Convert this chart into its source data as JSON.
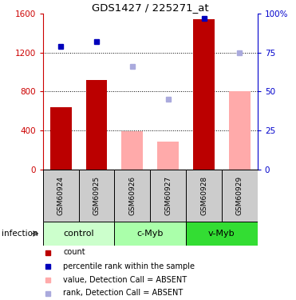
{
  "title": "GDS1427 / 225271_at",
  "samples": [
    "GSM60924",
    "GSM60925",
    "GSM60926",
    "GSM60927",
    "GSM60928",
    "GSM60929"
  ],
  "bar_values": [
    640,
    920,
    null,
    null,
    1540,
    null
  ],
  "bar_color_present": "#bb0000",
  "bar_color_absent": "#ffaaaa",
  "bar_values_absent": [
    null,
    null,
    390,
    290,
    null,
    800
  ],
  "dot_values": [
    1260,
    1310,
    null,
    null,
    1550,
    null
  ],
  "dot_color_present": "#0000bb",
  "dot_values_absent": [
    null,
    null,
    1060,
    720,
    null,
    1200
  ],
  "dot_color_absent": "#aaaadd",
  "ylim_left": [
    0,
    1600
  ],
  "ylim_right": [
    0,
    100
  ],
  "yticks_left": [
    0,
    400,
    800,
    1200,
    1600
  ],
  "yticks_right": [
    0,
    25,
    50,
    75,
    100
  ],
  "ytick_labels_right": [
    "0",
    "25",
    "50",
    "75",
    "100%"
  ],
  "left_axis_color": "#cc0000",
  "right_axis_color": "#0000cc",
  "sample_box_color": "#cccccc",
  "group_defs": [
    {
      "name": "control",
      "start": 0,
      "end": 2,
      "color": "#ccffcc"
    },
    {
      "name": "c-Myb",
      "start": 2,
      "end": 4,
      "color": "#aaffaa"
    },
    {
      "name": "v-Myb",
      "start": 4,
      "end": 6,
      "color": "#33dd33"
    }
  ],
  "legend_items": [
    {
      "color": "#bb0000",
      "label": "count"
    },
    {
      "color": "#0000bb",
      "label": "percentile rank within the sample"
    },
    {
      "color": "#ffaaaa",
      "label": "value, Detection Call = ABSENT"
    },
    {
      "color": "#aaaadd",
      "label": "rank, Detection Call = ABSENT"
    }
  ],
  "infection_label": "infection"
}
